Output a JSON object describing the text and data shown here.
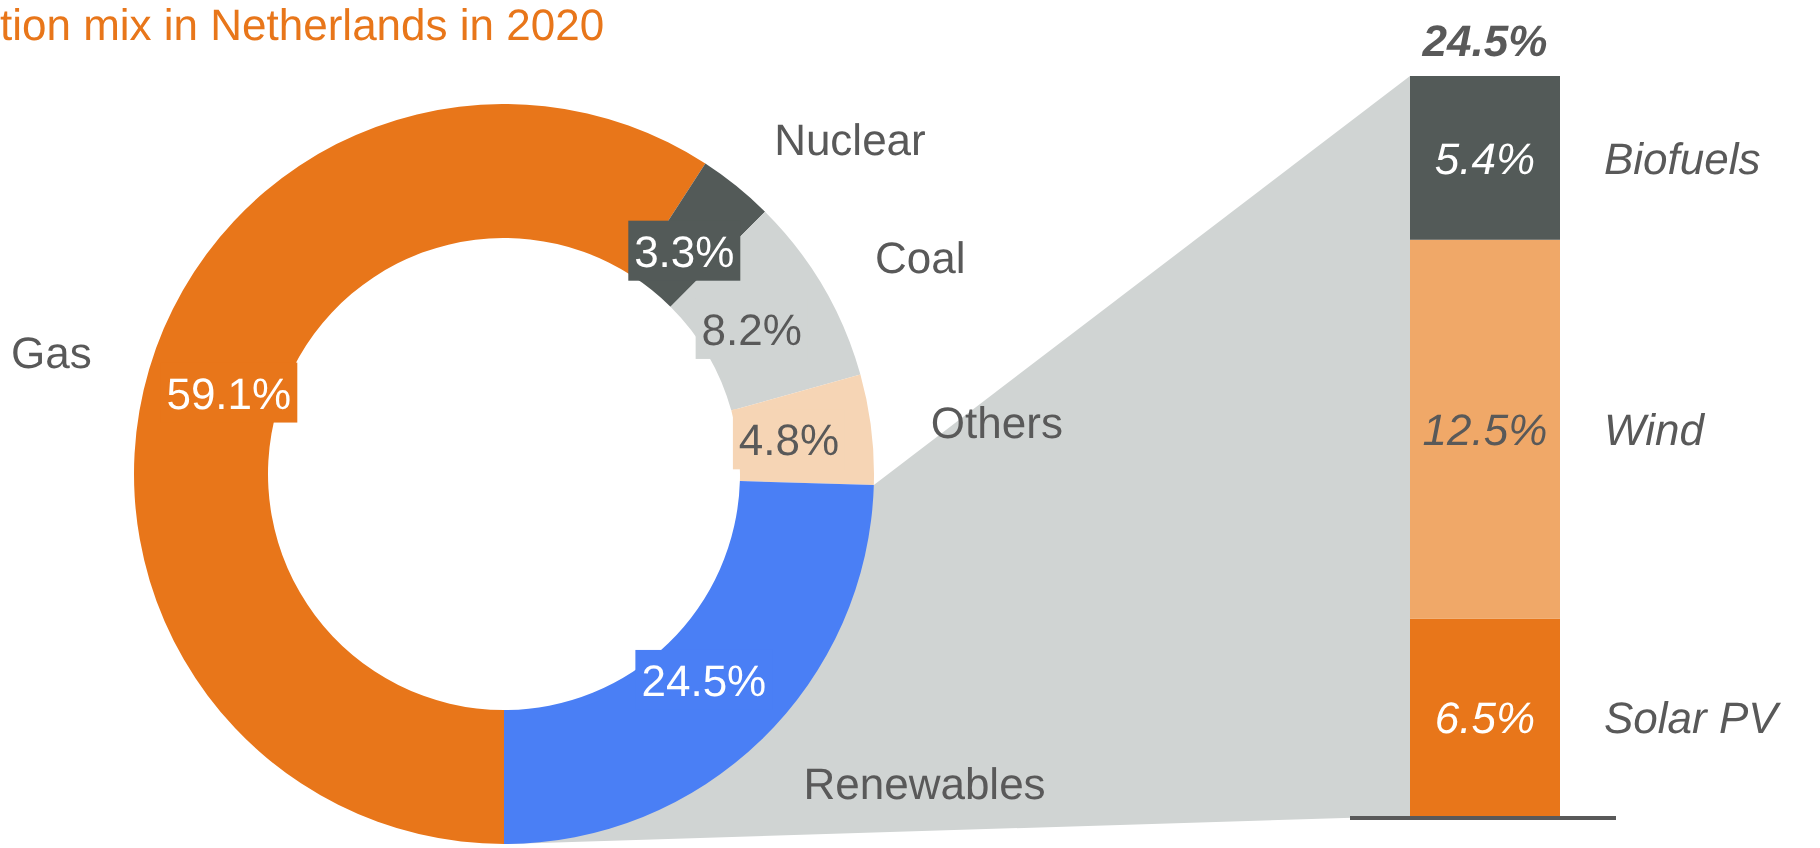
{
  "chart_data": [
    {
      "type": "donut",
      "title": "tion mix in Netherlands in 2020",
      "categories": [
        "Gas",
        "Nuclear",
        "Coal",
        "Others",
        "Renewables"
      ],
      "values": [
        59.1,
        3.3,
        8.2,
        4.8,
        24.5
      ],
      "colors": [
        "#e8761a",
        "#535a58",
        "#d0d4d3",
        "#f6d5b5",
        "#4a7ff5"
      ],
      "value_labels": [
        "59.1%",
        "3.3%",
        "8.2%",
        "4.8%",
        "24.5%"
      ]
    },
    {
      "type": "bar",
      "stacked": true,
      "categories": [
        null
      ],
      "series": [
        {
          "name": "Solar PV",
          "color": "#e8761a",
          "values": [
            6.5
          ],
          "value_labels": [
            "6.5%"
          ]
        },
        {
          "name": "Wind",
          "color": "#f0a868",
          "values": [
            12.5
          ],
          "value_labels": [
            "12.5%"
          ]
        },
        {
          "name": "Biofuels",
          "color": "#535a58",
          "values": [
            5.4
          ],
          "value_labels": [
            "5.4%"
          ]
        }
      ],
      "totals": [
        "24.5%"
      ]
    }
  ]
}
